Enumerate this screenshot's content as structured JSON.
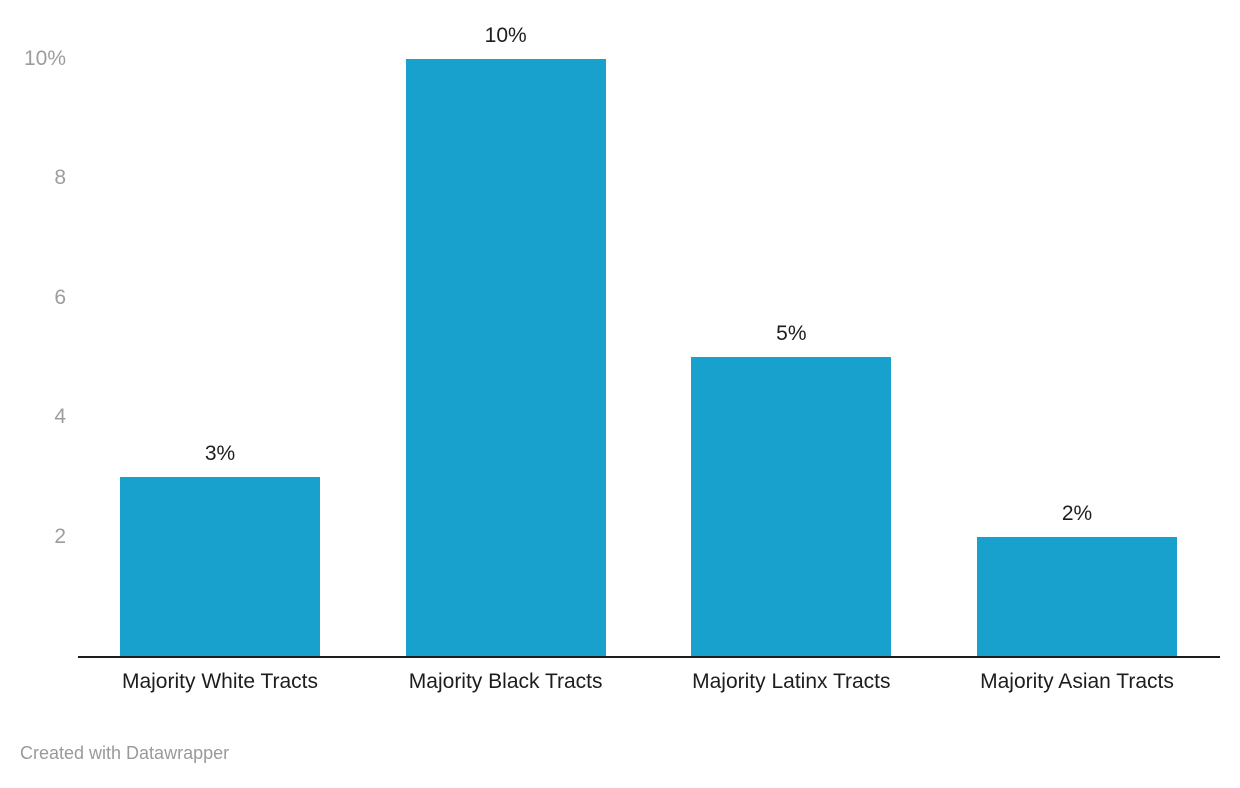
{
  "chart_data": {
    "type": "bar",
    "title": "",
    "xlabel": "",
    "ylabel": "",
    "categories": [
      "Majority White Tracts",
      "Majority Black Tracts",
      "Majority Latinx Tracts",
      "Majority Asian Tracts"
    ],
    "values": [
      3,
      10,
      5,
      2
    ],
    "value_labels": [
      "3%",
      "10%",
      "5%",
      "2%"
    ],
    "ylim": [
      0,
      10
    ],
    "yticks": [
      2,
      4,
      6,
      8,
      10
    ],
    "ytick_labels": [
      "2",
      "4",
      "6",
      "8",
      "10%"
    ],
    "grid": false,
    "legend": "none",
    "colors": {
      "bar": "#18a1cc",
      "axis_line": "#1d1d1d",
      "value_label": "#1d1d1d",
      "category_label": "#1d1d1d",
      "tick_label": "#9d9d9d",
      "footer": "#9a9a9a"
    }
  },
  "footer": {
    "attribution": "Created with Datawrapper"
  }
}
